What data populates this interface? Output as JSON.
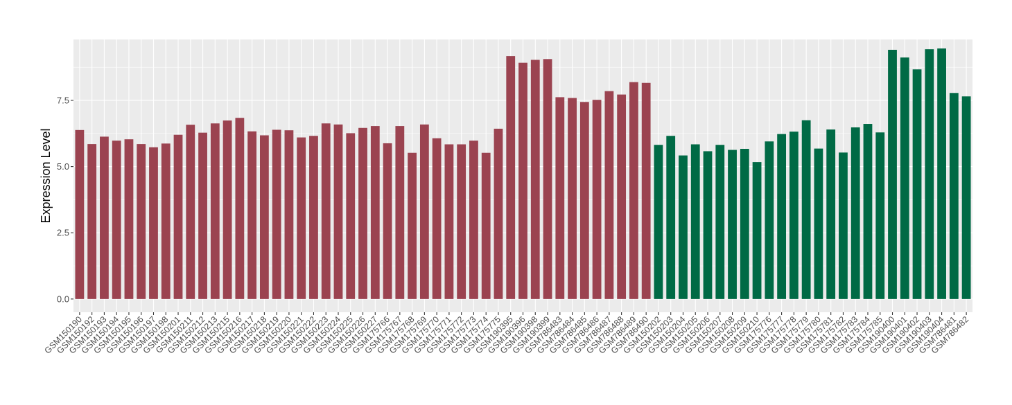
{
  "chart_data": {
    "type": "bar",
    "title": "",
    "xlabel": "",
    "ylabel": "Expression Level",
    "ylim": [
      -0.5,
      9.8
    ],
    "yticks": [
      0.0,
      2.5,
      5.0,
      7.5
    ],
    "ytick_labels": [
      "0.0",
      "2.5",
      "5.0",
      "7.5"
    ],
    "grid": true,
    "legend": "none",
    "colors": {
      "group1": "#9b4350",
      "group2": "#006a45",
      "panel": "#ebebeb",
      "gridline": "#ffffff"
    },
    "categories": [
      "GSM150190",
      "GSM150192",
      "GSM150193",
      "GSM150194",
      "GSM150195",
      "GSM150196",
      "GSM150197",
      "GSM150198",
      "GSM150201",
      "GSM150211",
      "GSM150212",
      "GSM150213",
      "GSM150215",
      "GSM150216",
      "GSM150217",
      "GSM150218",
      "GSM150219",
      "GSM150220",
      "GSM150221",
      "GSM150222",
      "GSM150223",
      "GSM150224",
      "GSM150225",
      "GSM150226",
      "GSM150227",
      "GSM175766",
      "GSM175767",
      "GSM175768",
      "GSM175769",
      "GSM175770",
      "GSM175771",
      "GSM175772",
      "GSM175773",
      "GSM175774",
      "GSM175775",
      "GSM190395",
      "GSM190396",
      "GSM190398",
      "GSM190399",
      "GSM786483",
      "GSM786484",
      "GSM786485",
      "GSM786486",
      "GSM786487",
      "GSM786488",
      "GSM786489",
      "GSM786490",
      "GSM150202",
      "GSM150203",
      "GSM150204",
      "GSM150205",
      "GSM150206",
      "GSM150207",
      "GSM150208",
      "GSM150209",
      "GSM150210",
      "GSM175776",
      "GSM175777",
      "GSM175778",
      "GSM175779",
      "GSM175780",
      "GSM175781",
      "GSM175782",
      "GSM175783",
      "GSM175784",
      "GSM175785",
      "GSM190400",
      "GSM190401",
      "GSM190402",
      "GSM190403",
      "GSM190404",
      "GSM786481",
      "GSM786482"
    ],
    "values": [
      6.38,
      5.85,
      6.13,
      5.98,
      6.03,
      5.85,
      5.73,
      5.87,
      6.2,
      6.58,
      6.28,
      6.63,
      6.74,
      6.84,
      6.33,
      6.18,
      6.39,
      6.37,
      6.1,
      6.16,
      6.63,
      6.59,
      6.26,
      6.46,
      6.53,
      5.88,
      6.53,
      5.52,
      6.59,
      6.07,
      5.84,
      5.84,
      5.98,
      5.52,
      6.43,
      9.17,
      8.92,
      9.03,
      9.06,
      7.62,
      7.59,
      7.44,
      7.52,
      7.85,
      7.72,
      8.19,
      8.16,
      5.82,
      6.16,
      5.42,
      5.84,
      5.58,
      5.82,
      5.63,
      5.67,
      5.17,
      5.95,
      6.23,
      6.32,
      6.75,
      5.68,
      6.4,
      5.53,
      6.48,
      6.61,
      6.29,
      9.41,
      9.12,
      8.67,
      9.43,
      9.46,
      7.78,
      7.65
    ],
    "groups": [
      1,
      1,
      1,
      1,
      1,
      1,
      1,
      1,
      1,
      1,
      1,
      1,
      1,
      1,
      1,
      1,
      1,
      1,
      1,
      1,
      1,
      1,
      1,
      1,
      1,
      1,
      1,
      1,
      1,
      1,
      1,
      1,
      1,
      1,
      1,
      1,
      1,
      1,
      1,
      1,
      1,
      1,
      1,
      1,
      1,
      1,
      1,
      2,
      2,
      2,
      2,
      2,
      2,
      2,
      2,
      2,
      2,
      2,
      2,
      2,
      2,
      2,
      2,
      2,
      2,
      2,
      2,
      2,
      2,
      2,
      2,
      2,
      2
    ]
  }
}
